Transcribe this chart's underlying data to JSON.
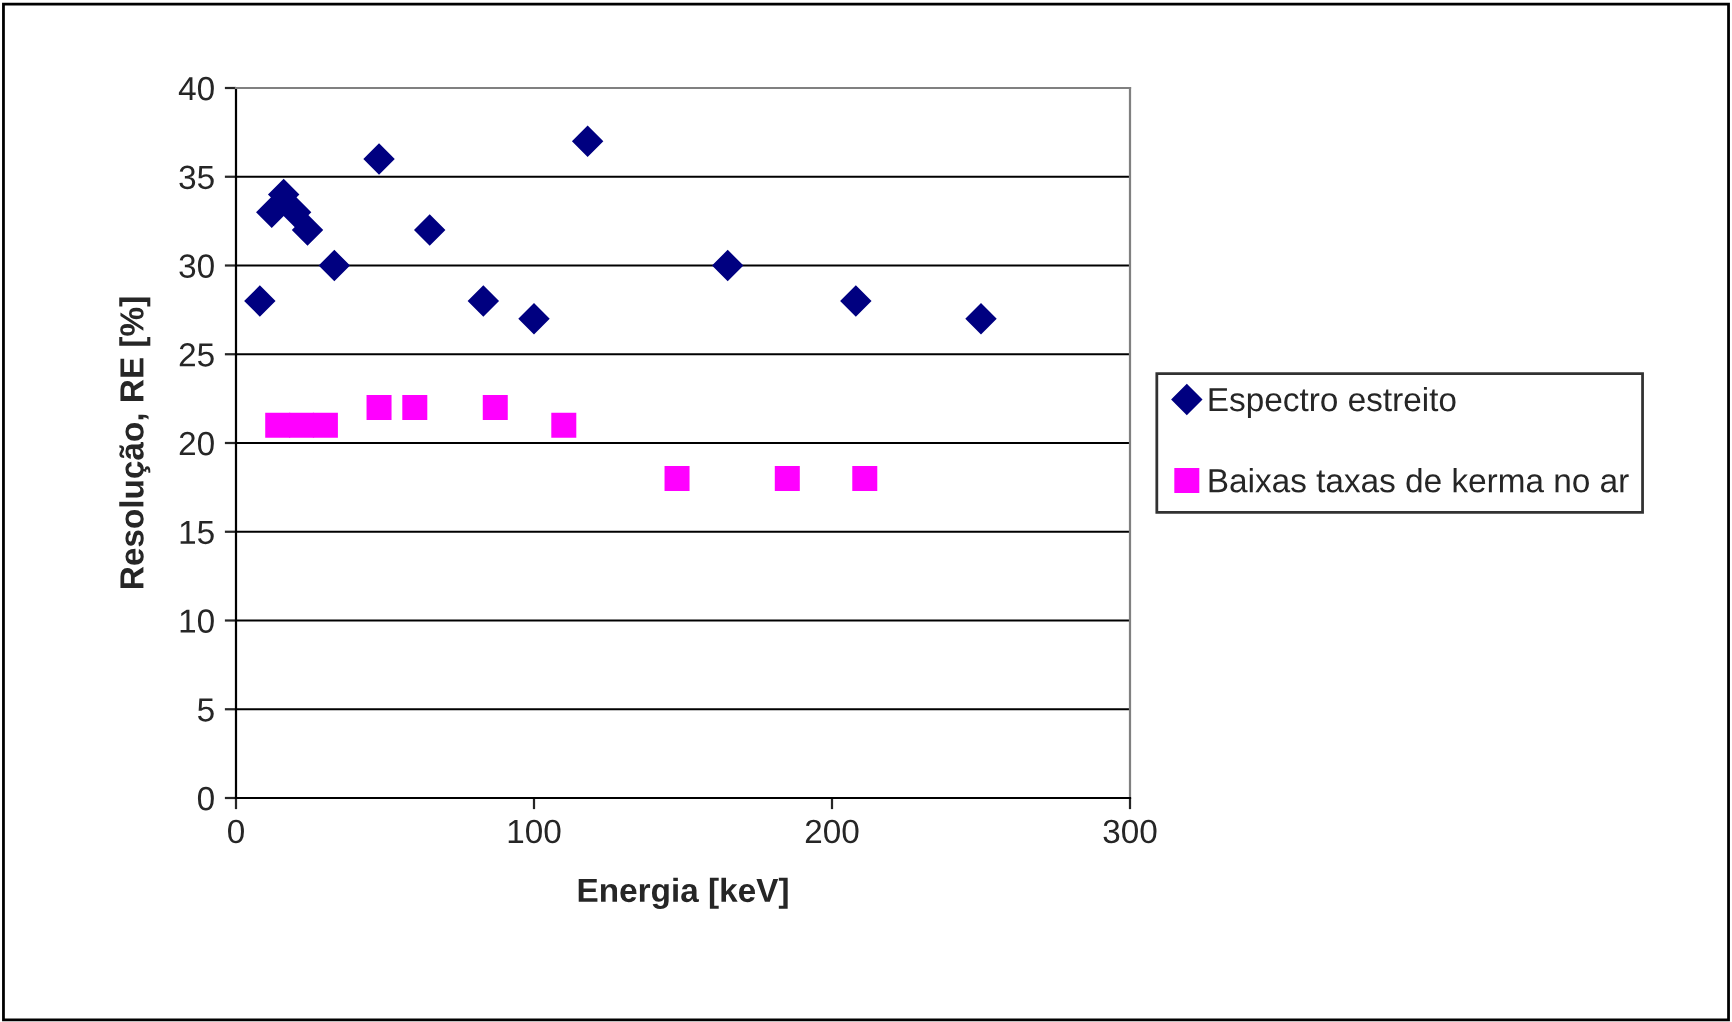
{
  "chart_data": {
    "type": "scatter",
    "xlabel": "Energia [keV]",
    "ylabel": "Resolução, RE [%]",
    "xlim": [
      0,
      300
    ],
    "xticks": [
      0,
      100,
      200,
      300
    ],
    "ylim": [
      0,
      40
    ],
    "yticks": [
      0,
      5,
      10,
      15,
      20,
      25,
      30,
      35,
      40
    ],
    "grid": "y",
    "legend": "right",
    "series": [
      {
        "name": "Espectro estreito",
        "color": "#000080",
        "marker": "diamond",
        "x": [
          8,
          12,
          16,
          20,
          24,
          33,
          48,
          65,
          83,
          100,
          118,
          165,
          208,
          250
        ],
        "values": [
          28,
          33,
          34,
          33,
          32,
          30,
          36,
          32,
          28,
          27,
          37,
          30,
          28,
          27
        ]
      },
      {
        "name": "Baixas taxas de kerma no ar",
        "color": "#ff00ff",
        "marker": "square",
        "x": [
          14,
          22,
          30,
          48,
          60,
          87,
          110,
          148,
          185,
          211
        ],
        "values": [
          21,
          21,
          21,
          22,
          22,
          22,
          21,
          18,
          18,
          18
        ]
      }
    ]
  }
}
